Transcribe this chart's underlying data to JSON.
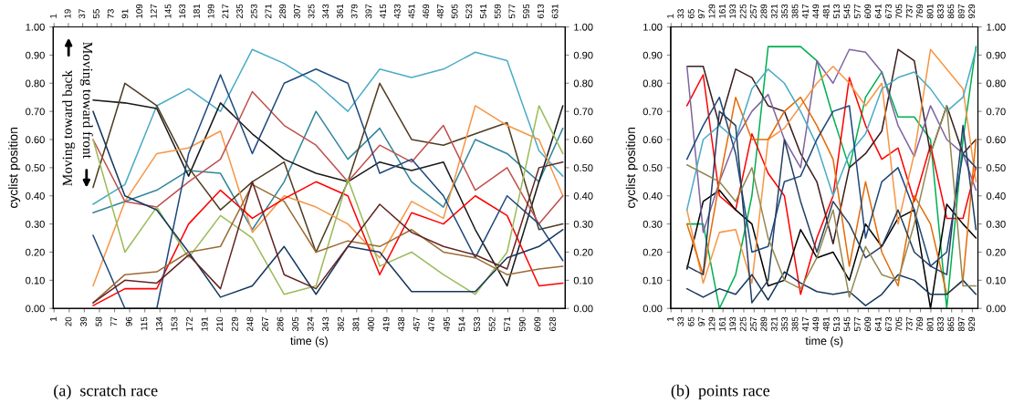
{
  "chart_data": [
    {
      "type": "line",
      "ylabel": "cyclist position",
      "xlabel": "time (s)",
      "annotations": [
        "Moving toward back",
        "Moving toward front",
        "(a)  scratch race"
      ],
      "xlim": [
        0,
        643
      ],
      "ylim": [
        0,
        1
      ],
      "y2lim": [
        0,
        1
      ],
      "x2lim": [
        0,
        643
      ],
      "xticks": [
        1,
        20,
        39,
        58,
        77,
        96,
        115,
        134,
        153,
        172,
        191,
        210,
        229,
        248,
        267,
        286,
        305,
        324,
        343,
        362,
        381,
        400,
        419,
        438,
        457,
        476,
        495,
        514,
        533,
        552,
        571,
        590,
        609,
        628
      ],
      "x2ticks": [
        1,
        19,
        37,
        55,
        73,
        91,
        109,
        127,
        145,
        163,
        181,
        199,
        217,
        235,
        253,
        271,
        289,
        307,
        325,
        343,
        361,
        379,
        397,
        415,
        433,
        451,
        469,
        487,
        505,
        523,
        541,
        559,
        577,
        595,
        613,
        631
      ],
      "yticks": [
        {
          "value": 0,
          "label": "0.00"
        },
        {
          "value": 0.1,
          "label": "0.10"
        },
        {
          "value": 0.2,
          "label": "0.20"
        },
        {
          "value": 0.3,
          "label": "0.30"
        },
        {
          "value": 0.4,
          "label": "0.40"
        },
        {
          "value": 0.5,
          "label": "0.50"
        },
        {
          "value": 0.6,
          "label": "0.60"
        },
        {
          "value": 0.7,
          "label": "0.70"
        },
        {
          "value": 0.8,
          "label": "0.80"
        },
        {
          "value": 0.9,
          "label": "0.90"
        },
        {
          "value": 1,
          "label": "1.00"
        }
      ],
      "y2ticks": [
        {
          "value": 0,
          "label": "0.00"
        },
        {
          "value": 0.1,
          "label": "0.10"
        },
        {
          "value": 0.2,
          "label": "0.20"
        },
        {
          "value": 0.3,
          "label": "0.30"
        },
        {
          "value": 0.4,
          "label": "0.40"
        },
        {
          "value": 0.5,
          "label": "0.50"
        },
        {
          "value": 0.6,
          "label": "0.60"
        },
        {
          "value": 0.7,
          "label": "0.70"
        },
        {
          "value": 0.8,
          "label": "0.80"
        },
        {
          "value": 0.9,
          "label": "0.90"
        },
        {
          "value": 1,
          "label": "1.00"
        }
      ],
      "x": [
        50,
        90,
        130,
        170,
        210,
        250,
        290,
        330,
        370,
        410,
        450,
        490,
        530,
        570,
        610,
        640
      ],
      "series": [
        {
          "color": "#4bacc6",
          "values": [
            0.37,
            0.44,
            0.72,
            0.78,
            0.7,
            0.92,
            0.87,
            0.8,
            0.7,
            0.85,
            0.82,
            0.85,
            0.91,
            0.88,
            0.56,
            0.47
          ]
        },
        {
          "color": "#31869b",
          "values": [
            0.34,
            0.38,
            0.42,
            0.49,
            0.48,
            0.28,
            0.45,
            0.7,
            0.53,
            0.64,
            0.45,
            0.36,
            0.6,
            0.55,
            0.45,
            0.64
          ]
        },
        {
          "color": "#1a1a1a",
          "values": [
            0.74,
            0.73,
            0.71,
            0.47,
            0.73,
            0.62,
            0.53,
            0.48,
            0.45,
            0.52,
            0.49,
            0.52,
            0.28,
            0.08,
            0.45,
            0.72
          ]
        },
        {
          "color": "#4f3d20",
          "values": [
            0.43,
            0.8,
            0.72,
            0.5,
            0.35,
            0.45,
            0.52,
            0.2,
            0.45,
            0.8,
            0.6,
            0.58,
            0.62,
            0.66,
            0.28,
            0.3
          ]
        },
        {
          "color": "#f79646",
          "values": [
            0.08,
            0.38,
            0.55,
            0.57,
            0.63,
            0.27,
            0.4,
            0.36,
            0.3,
            0.18,
            0.38,
            0.32,
            0.72,
            0.65,
            0.6,
            0.4
          ]
        },
        {
          "color": "#ff0000",
          "values": [
            0.01,
            0.07,
            0.07,
            0.3,
            0.42,
            0.32,
            0.39,
            0.45,
            0.4,
            0.12,
            0.34,
            0.3,
            0.4,
            0.33,
            0.08,
            0.09
          ]
        },
        {
          "color": "#c0504d",
          "values": [
            0.6,
            0.38,
            0.36,
            0.45,
            0.53,
            0.77,
            0.65,
            0.58,
            0.45,
            0.58,
            0.52,
            0.65,
            0.42,
            0.5,
            0.3,
            0.4
          ]
        },
        {
          "color": "#9bbb59",
          "values": [
            0.6,
            0.2,
            0.36,
            0.18,
            0.33,
            0.25,
            0.05,
            0.08,
            0.46,
            0.15,
            0.2,
            0.12,
            0.05,
            0.2,
            0.72,
            0.55
          ]
        },
        {
          "color": "#1f497d",
          "values": [
            0.26,
            0.0,
            0.0,
            0.55,
            0.83,
            0.55,
            0.8,
            0.85,
            0.8,
            0.48,
            0.53,
            0.4,
            0.18,
            0.4,
            0.3,
            0.17
          ]
        },
        {
          "color": "#17375e",
          "values": [
            0.7,
            0.4,
            0.35,
            0.2,
            0.04,
            0.08,
            0.22,
            0.05,
            0.22,
            0.2,
            0.06,
            0.06,
            0.06,
            0.18,
            0.22,
            0.28
          ]
        },
        {
          "color": "#9c6a32",
          "values": [
            0.02,
            0.12,
            0.13,
            0.2,
            0.22,
            0.44,
            0.38,
            0.2,
            0.24,
            0.22,
            0.28,
            0.2,
            0.18,
            0.12,
            0.14,
            0.15
          ]
        },
        {
          "color": "#632523",
          "values": [
            0.02,
            0.1,
            0.09,
            0.19,
            0.07,
            0.45,
            0.12,
            0.07,
            0.22,
            0.37,
            0.27,
            0.22,
            0.19,
            0.14,
            0.5,
            0.52
          ]
        }
      ]
    },
    {
      "type": "line",
      "ylabel": "cyclist position",
      "xlabel": "time (s)",
      "annotations": [
        "(b)  points race"
      ],
      "xlim": [
        0,
        946
      ],
      "ylim": [
        0,
        1
      ],
      "y2lim": [
        0,
        1
      ],
      "x2lim": [
        0,
        946
      ],
      "xticks": [
        1,
        33,
        65,
        97,
        129,
        161,
        193,
        225,
        257,
        289,
        321,
        353,
        385,
        417,
        449,
        481,
        513,
        545,
        577,
        609,
        641,
        673,
        705,
        737,
        769,
        801,
        833,
        865,
        897,
        929
      ],
      "x2ticks": [
        1,
        33,
        65,
        97,
        129,
        161,
        193,
        225,
        257,
        289,
        321,
        353,
        385,
        417,
        449,
        481,
        513,
        545,
        577,
        609,
        641,
        673,
        705,
        737,
        769,
        801,
        833,
        865,
        897,
        929
      ],
      "yticks": [
        {
          "value": 0,
          "label": "0.00"
        },
        {
          "value": 0.1,
          "label": "0.10"
        },
        {
          "value": 0.2,
          "label": "0.20"
        },
        {
          "value": 0.3,
          "label": "0.30"
        },
        {
          "value": 0.4,
          "label": "0.40"
        },
        {
          "value": 0.5,
          "label": "0.50"
        },
        {
          "value": 0.6,
          "label": "0.60"
        },
        {
          "value": 0.7,
          "label": "0.70"
        },
        {
          "value": 0.8,
          "label": "0.80"
        },
        {
          "value": 0.9,
          "label": "0.90"
        },
        {
          "value": 1,
          "label": "1.00"
        }
      ],
      "y2ticks": [
        {
          "value": 0,
          "label": "0.00"
        },
        {
          "value": 0.1,
          "label": "0.10"
        },
        {
          "value": 0.2,
          "label": "0.20"
        },
        {
          "value": 0.3,
          "label": "0.30"
        },
        {
          "value": 0.4,
          "label": "0.40"
        },
        {
          "value": 0.5,
          "label": "0.50"
        },
        {
          "value": 0.6,
          "label": "0.60"
        },
        {
          "value": 0.7,
          "label": "0.70"
        },
        {
          "value": 0.8,
          "label": "0.80"
        },
        {
          "value": 0.9,
          "label": "0.90"
        },
        {
          "value": 1,
          "label": "1.00"
        }
      ],
      "x": [
        50,
        100,
        150,
        200,
        250,
        300,
        350,
        400,
        450,
        500,
        550,
        600,
        650,
        700,
        750,
        800,
        850,
        900,
        940
      ],
      "series": [
        {
          "color": "#00b050",
          "values": [
            0.3,
            0.3,
            0.0,
            0.12,
            0.4,
            0.93,
            0.93,
            0.93,
            0.88,
            0.68,
            0.5,
            0.75,
            0.84,
            0.68,
            0.68,
            0.6,
            0.0,
            0.6,
            0.93
          ]
        },
        {
          "color": "#ff0000",
          "values": [
            0.72,
            0.83,
            0.4,
            0.35,
            0.62,
            0.48,
            0.4,
            0.05,
            0.25,
            0.4,
            0.82,
            0.65,
            0.53,
            0.57,
            0.38,
            0.58,
            0.32,
            0.32,
            0.5
          ]
        },
        {
          "color": "#000000",
          "values": [
            0.14,
            0.38,
            0.42,
            0.35,
            0.3,
            0.08,
            0.1,
            0.28,
            0.18,
            0.2,
            0.1,
            0.3,
            0.22,
            0.32,
            0.35,
            0.0,
            0.37,
            0.3,
            0.25
          ]
        },
        {
          "color": "#3b1f1f",
          "values": [
            0.86,
            0.86,
            0.65,
            0.85,
            0.82,
            0.72,
            0.7,
            0.55,
            0.45,
            0.23,
            0.5,
            0.55,
            0.63,
            0.92,
            0.88,
            0.55,
            0.72,
            0.55,
            0.6
          ]
        },
        {
          "color": "#8064a2",
          "values": [
            0.86,
            0.27,
            0.45,
            0.6,
            0.7,
            0.76,
            0.6,
            0.5,
            0.88,
            0.8,
            0.92,
            0.91,
            0.84,
            0.65,
            0.54,
            0.72,
            0.6,
            0.55,
            0.42
          ]
        },
        {
          "color": "#f79646",
          "values": [
            0.35,
            0.09,
            0.27,
            0.28,
            0.09,
            0.6,
            0.64,
            0.72,
            0.8,
            0.86,
            0.8,
            0.72,
            0.8,
            0.3,
            0.55,
            0.92,
            0.85,
            0.78,
            0.45
          ]
        },
        {
          "color": "#e46c0a",
          "values": [
            0.3,
            0.12,
            0.45,
            0.75,
            0.6,
            0.6,
            0.7,
            0.75,
            0.65,
            0.53,
            0.15,
            0.45,
            0.2,
            0.08,
            0.4,
            0.3,
            0.05,
            0.1,
            0.6
          ]
        },
        {
          "color": "#4bacc6",
          "values": [
            0.35,
            0.6,
            0.65,
            0.6,
            0.78,
            0.85,
            0.8,
            0.7,
            0.58,
            0.4,
            0.55,
            0.62,
            0.78,
            0.82,
            0.84,
            0.78,
            0.7,
            0.75,
            0.92
          ]
        },
        {
          "color": "#1f497d",
          "values": [
            0.53,
            0.65,
            0.75,
            0.55,
            0.2,
            0.22,
            0.45,
            0.47,
            0.6,
            0.7,
            0.72,
            0.25,
            0.45,
            0.5,
            0.35,
            0.15,
            0.2,
            0.55,
            0.5
          ]
        },
        {
          "color": "#254061",
          "values": [
            0.15,
            0.12,
            0.7,
            0.65,
            0.02,
            0.1,
            0.6,
            0.38,
            0.2,
            0.38,
            0.3,
            0.18,
            0.22,
            0.35,
            0.2,
            0.15,
            0.12,
            0.65,
            0.28
          ]
        },
        {
          "color": "#17375e",
          "values": [
            0.07,
            0.04,
            0.07,
            0.05,
            0.12,
            0.03,
            0.13,
            0.09,
            0.06,
            0.05,
            0.06,
            0.01,
            0.05,
            0.12,
            0.1,
            0.05,
            0.05,
            0.1,
            0.05
          ]
        },
        {
          "color": "#938953",
          "values": [
            0.51,
            0.48,
            0.45,
            0.38,
            0.5,
            0.25,
            0.1,
            0.07,
            0.18,
            0.35,
            0.04,
            0.22,
            0.12,
            0.1,
            0.3,
            0.55,
            0.72,
            0.08,
            0.08
          ]
        }
      ]
    }
  ]
}
